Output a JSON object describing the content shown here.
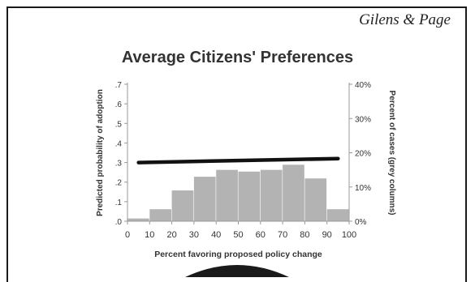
{
  "header": {
    "author": "Gilens & Page"
  },
  "chart_data": {
    "type": "bar",
    "title": "Average Citizens' Preferences",
    "xlabel": "Percent favoring proposed policy change",
    "ylabel_left": "Predicted probability of adoption",
    "ylabel_right": "Percent of cases (grey columns)",
    "x_ticks": [
      "0",
      "10",
      "20",
      "30",
      "40",
      "50",
      "60",
      "70",
      "80",
      "90",
      "100"
    ],
    "y_left_ticks": [
      ".0",
      ".1",
      ".2",
      ".3",
      ".4",
      ".5",
      ".6",
      ".7"
    ],
    "y_right_ticks": [
      "0%",
      "10%",
      "20%",
      "30%",
      "40%"
    ],
    "xlim": [
      0,
      100
    ],
    "ylim_left": [
      0,
      0.7
    ],
    "ylim_right": [
      0,
      40
    ],
    "bins": [
      {
        "from": 0,
        "to": 10,
        "percent": 0.8
      },
      {
        "from": 10,
        "to": 20,
        "percent": 3.5
      },
      {
        "from": 20,
        "to": 30,
        "percent": 9
      },
      {
        "from": 30,
        "to": 40,
        "percent": 13
      },
      {
        "from": 40,
        "to": 50,
        "percent": 15
      },
      {
        "from": 50,
        "to": 60,
        "percent": 14.5
      },
      {
        "from": 60,
        "to": 70,
        "percent": 15
      },
      {
        "from": 70,
        "to": 80,
        "percent": 16.5
      },
      {
        "from": 80,
        "to": 90,
        "percent": 12.5
      },
      {
        "from": 90,
        "to": 100,
        "percent": 3.5
      }
    ],
    "line": {
      "x": [
        5,
        95
      ],
      "y": [
        0.3,
        0.32
      ]
    },
    "colors": {
      "bars": "#b3b3b3",
      "line": "#111111",
      "axis": "#999999",
      "text": "#333333"
    }
  }
}
